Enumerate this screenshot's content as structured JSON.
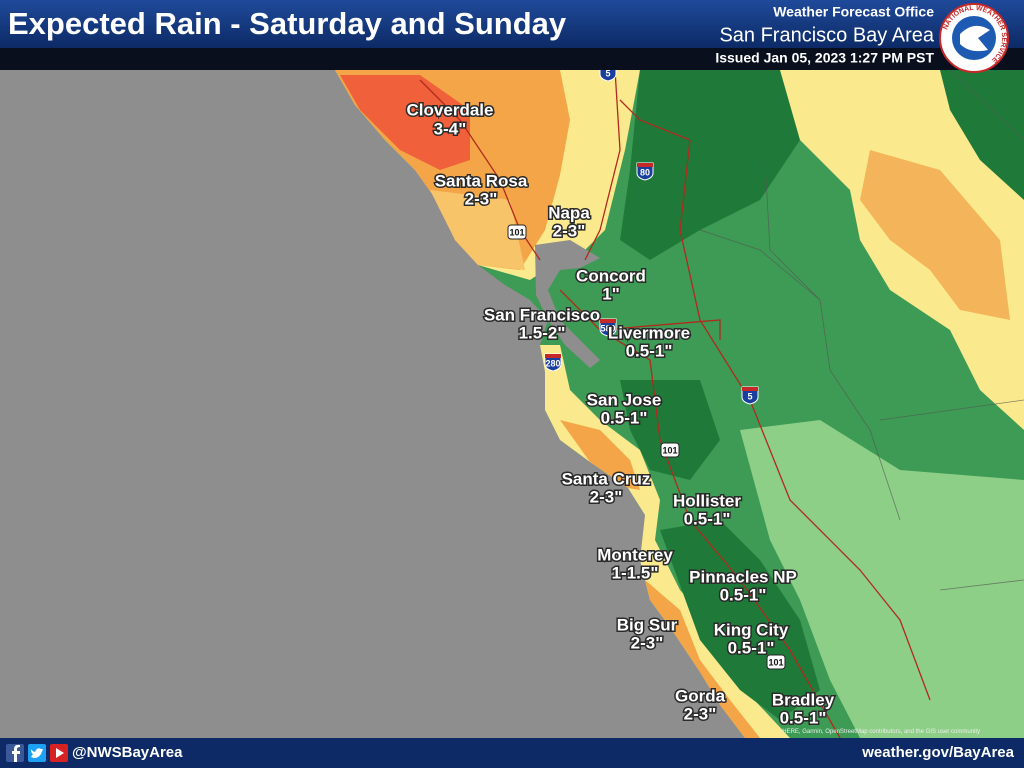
{
  "header": {
    "title": "Expected Rain - Saturday and Sunday",
    "office": "Weather Forecast Office",
    "area": "San Francisco Bay Area",
    "issued": "Issued Jan 05, 2023 1:27 PM PST",
    "logo_text": "NATIONAL WEATHER SERVICE"
  },
  "map": {
    "locations": [
      {
        "name": "Cloverdale",
        "amount": "3-4\""
      },
      {
        "name": "Santa Rosa",
        "amount": "2-3\""
      },
      {
        "name": "Napa",
        "amount": "2-3\""
      },
      {
        "name": "Concord",
        "amount": "1\""
      },
      {
        "name": "San Francisco",
        "amount": "1.5-2\""
      },
      {
        "name": "Livermore",
        "amount": "0.5-1\""
      },
      {
        "name": "San Jose",
        "amount": "0.5-1\""
      },
      {
        "name": "Santa Cruz",
        "amount": "2-3\""
      },
      {
        "name": "Hollister",
        "amount": "0.5-1\""
      },
      {
        "name": "Monterey",
        "amount": "1-1.5\""
      },
      {
        "name": "Pinnacles NP",
        "amount": "0.5-1\""
      },
      {
        "name": "Big Sur",
        "amount": "2-3\""
      },
      {
        "name": "King City",
        "amount": "0.5-1\""
      },
      {
        "name": "Gorda",
        "amount": "2-3\""
      },
      {
        "name": "Bradley",
        "amount": "0.5-1\""
      }
    ],
    "highways": [
      "5",
      "80",
      "101",
      "580",
      "280",
      "5",
      "101",
      "101"
    ],
    "attribution": "HERE, Garmin, OpenStreetMap contributors, and the GIS user community"
  },
  "footer": {
    "handle": "@NWSBayArea",
    "website": "weather.gov/BayArea"
  }
}
